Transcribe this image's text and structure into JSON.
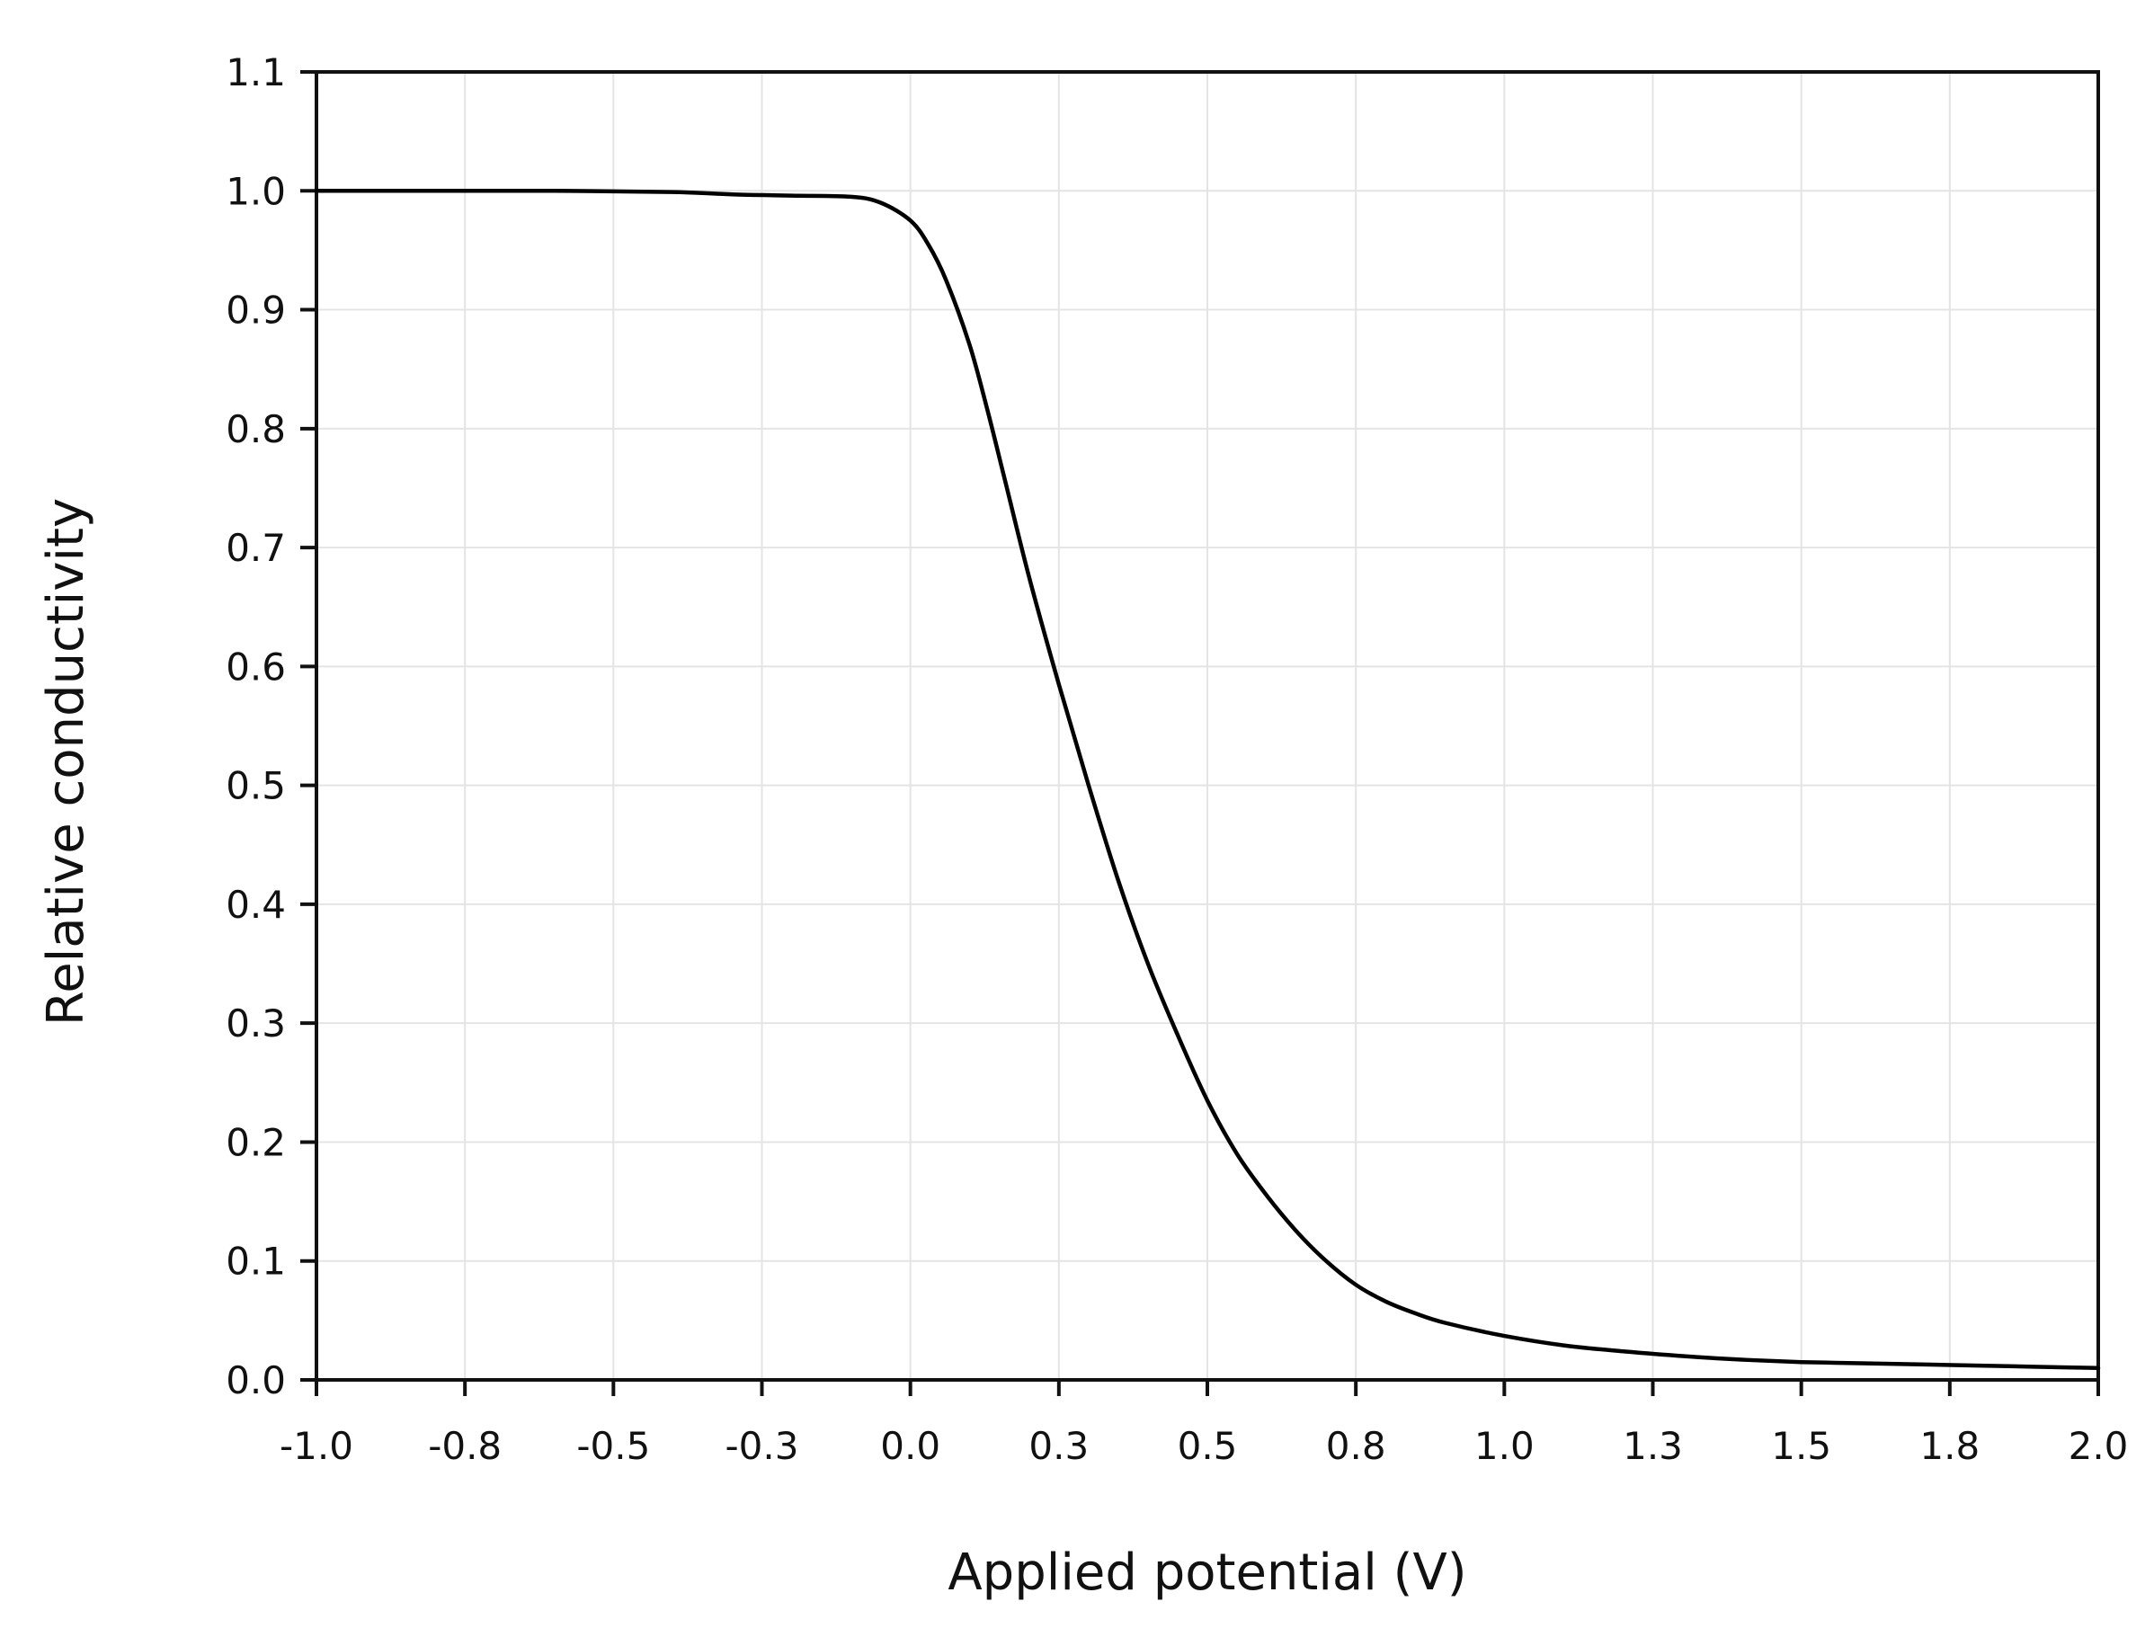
{
  "chart_data": {
    "type": "line",
    "title": "",
    "xlabel": "Applied potential (V)",
    "ylabel": "Relative conductivity",
    "xlim": [
      -1.0,
      2.0
    ],
    "ylim": [
      0.0,
      1.1
    ],
    "grid": true,
    "legend": "none",
    "x_tick_labels": [
      "-1.0",
      "-0.8",
      "-0.5",
      "-0.3",
      "0.0",
      "0.3",
      "0.5",
      "0.8",
      "1.0",
      "1.3",
      "1.5",
      "1.8",
      "2.0"
    ],
    "y_tick_labels": [
      "0.0",
      "0.1",
      "0.2",
      "0.3",
      "0.4",
      "0.5",
      "0.6",
      "0.7",
      "0.8",
      "0.9",
      "1.0",
      "1.1"
    ],
    "series": [
      {
        "color": "#000000",
        "x": [
          -1.0,
          -0.8,
          -0.6,
          -0.4,
          -0.3,
          -0.2,
          -0.1,
          -0.05,
          0.0,
          0.03,
          0.06,
          0.1,
          0.13,
          0.16,
          0.2,
          0.25,
          0.3,
          0.35,
          0.4,
          0.45,
          0.5,
          0.55,
          0.6,
          0.65,
          0.7,
          0.75,
          0.8,
          0.85,
          0.9,
          1.0,
          1.1,
          1.2,
          1.3,
          1.4,
          1.5,
          1.6,
          1.7,
          1.8,
          1.9,
          2.0
        ],
        "y": [
          1.0,
          1.0,
          1.0,
          0.999,
          0.997,
          0.996,
          0.995,
          0.99,
          0.975,
          0.955,
          0.925,
          0.87,
          0.815,
          0.755,
          0.675,
          0.585,
          0.5,
          0.42,
          0.35,
          0.29,
          0.235,
          0.19,
          0.155,
          0.125,
          0.1,
          0.08,
          0.066,
          0.056,
          0.048,
          0.037,
          0.029,
          0.024,
          0.02,
          0.017,
          0.015,
          0.014,
          0.013,
          0.012,
          0.011,
          0.01
        ]
      }
    ]
  }
}
